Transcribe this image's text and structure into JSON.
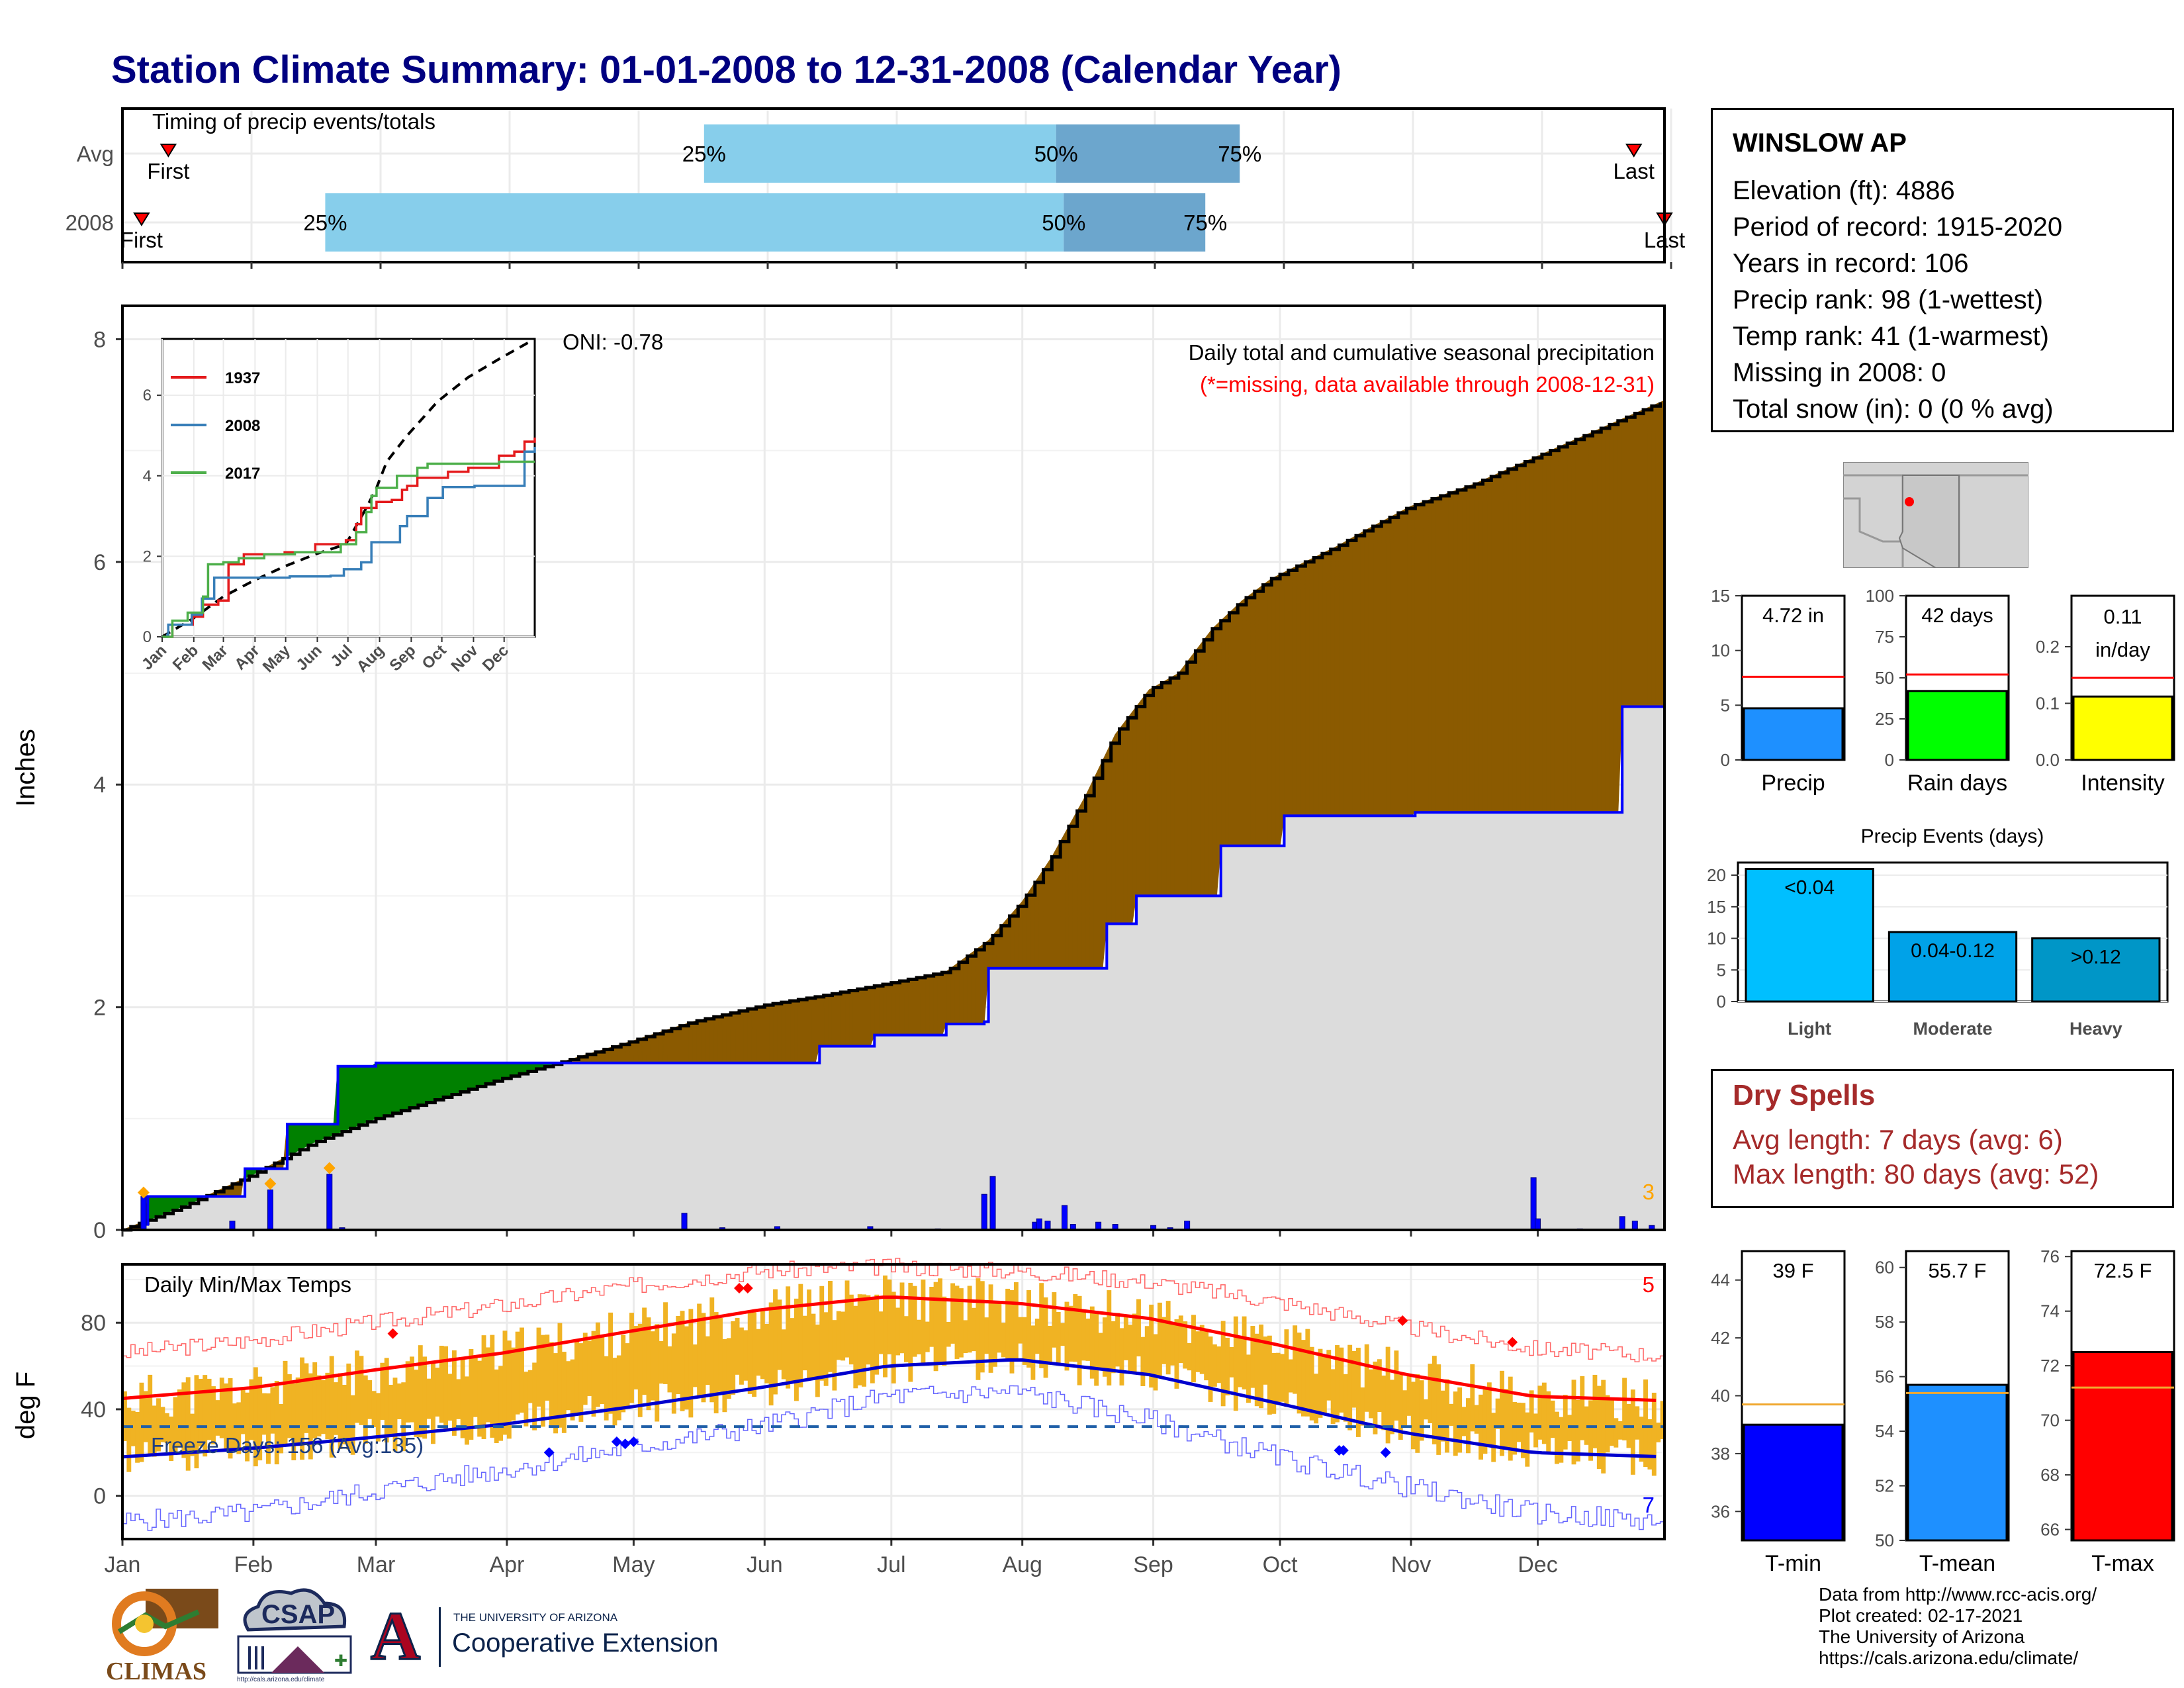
{
  "title": "Station Climate Summary: 01-01-2008 to 12-31-2008 (Calendar Year)",
  "station": {
    "name": "WINSLOW AP",
    "lines": [
      "Elevation (ft): 4886",
      "Period of record: 1915-2020",
      "Years in record: 106",
      "Precip rank: 98 (1-wettest)",
      "Temp rank: 41 (1-warmest)",
      "Missing in 2008: 0",
      "Total snow (in): 0 (0 % avg)"
    ]
  },
  "dry_spells": {
    "title": "Dry Spells",
    "avg_line": "Avg length: 7 days (avg: 6)",
    "max_line": "Max length: 80 days (avg: 52)"
  },
  "credits": [
    "Data from http://www.rcc-acis.org/",
    "Plot created: 02-17-2021",
    "The University of Arizona",
    "https://cals.arizona.edu/climate/"
  ],
  "logos": {
    "climas": "CLIMAS",
    "csap": "CSAP",
    "csap_url": "http://cals.arizona.edu/climate",
    "ua_line1": "THE UNIVERSITY OF ARIZONA",
    "ua_line2": "Cooperative Extension",
    "ua_mark": "A"
  },
  "colors": {
    "title": "#000080",
    "light_blue": "#87ceeb",
    "mid_blue": "#6ca6cd",
    "brown": "#8b5a00",
    "green": "#008000",
    "gray_fill": "#dcdcdc",
    "orange": "#ffa500",
    "temp_bar": "#f0b323",
    "tmin": "#0000ff",
    "tmean": "#1e90ff",
    "tmax": "#ff0000",
    "dry_spell": "#a52a2a"
  },
  "chart_data": [
    {
      "id": "timing",
      "type": "bar",
      "title": "Timing of precip events/totals",
      "rows": [
        {
          "label": "Avg",
          "first_day": 12,
          "q25_day": 152,
          "q50_day": 244,
          "q75_day": 292,
          "last_day": 395,
          "first_label": "First",
          "last_label": "Last"
        },
        {
          "label": "2008",
          "first_day": 5,
          "q25_day": 53,
          "q50_day": 246,
          "q75_day": 283,
          "last_day": 403,
          "first_label": "First",
          "last_label": "Last"
        }
      ],
      "quartile_labels": [
        "25%",
        "50%",
        "75%"
      ],
      "xlim": [
        0,
        403
      ]
    },
    {
      "id": "precip",
      "type": "area",
      "title": "Daily total and cumulative seasonal precipitation",
      "subtitle": "(*=missing, data available through 2008-12-31)",
      "ylabel": "Inches",
      "ylim": [
        0,
        8.3
      ],
      "yticks": [
        0,
        2,
        4,
        6,
        8
      ],
      "oni_text": "ONI: -0.78",
      "corner_count": "3",
      "x_months": [
        "Jan",
        "Feb",
        "Mar",
        "Apr",
        "May",
        "Jun",
        "Jul",
        "Aug",
        "Sep",
        "Oct",
        "Nov",
        "Dec"
      ],
      "avg_cumulative": {
        "days": [
          0,
          15,
          31,
          45,
          60,
          75,
          90,
          105,
          121,
          135,
          152,
          165,
          182,
          195,
          205,
          213,
          220,
          228,
          235,
          243,
          250,
          258,
          265,
          272,
          280,
          288,
          295,
          305,
          320,
          335,
          350,
          365
        ],
        "values": [
          0,
          0.22,
          0.5,
          0.78,
          1.0,
          1.18,
          1.36,
          1.52,
          1.7,
          1.87,
          2.02,
          2.1,
          2.22,
          2.32,
          2.6,
          2.95,
          3.35,
          3.9,
          4.45,
          4.85,
          5.0,
          5.4,
          5.65,
          5.85,
          6.0,
          6.15,
          6.3,
          6.5,
          6.7,
          6.95,
          7.2,
          7.45
        ]
      },
      "obs_cumulative": {
        "days": [
          0,
          5,
          6,
          28,
          29,
          38,
          39,
          50,
          51,
          60,
          61,
          125,
          165,
          165,
          178,
          178,
          195,
          195,
          204,
          205,
          233,
          233,
          240,
          260,
          275,
          275,
          306,
          355,
          355,
          365
        ],
        "values": [
          0,
          0.05,
          0.3,
          0.3,
          0.55,
          0.55,
          0.95,
          0.95,
          1.47,
          1.5,
          1.5,
          1.5,
          1.52,
          1.65,
          1.68,
          1.75,
          1.75,
          1.85,
          1.87,
          2.35,
          2.4,
          2.75,
          3.0,
          3.45,
          3.55,
          3.72,
          3.75,
          4.6,
          4.7,
          4.72
        ]
      },
      "daily_bars": [
        {
          "day": 5,
          "value": 0.3
        },
        {
          "day": 26,
          "value": 0.08
        },
        {
          "day": 35,
          "value": 0.36
        },
        {
          "day": 49,
          "value": 0.5
        },
        {
          "day": 52,
          "value": 0.02
        },
        {
          "day": 133,
          "value": 0.15
        },
        {
          "day": 142,
          "value": 0.02
        },
        {
          "day": 155,
          "value": 0.03
        },
        {
          "day": 177,
          "value": 0.03
        },
        {
          "day": 193,
          "value": 0.01
        },
        {
          "day": 204,
          "value": 0.32
        },
        {
          "day": 206,
          "value": 0.48
        },
        {
          "day": 216,
          "value": 0.07
        },
        {
          "day": 217,
          "value": 0.1
        },
        {
          "day": 219,
          "value": 0.08
        },
        {
          "day": 223,
          "value": 0.22
        },
        {
          "day": 225,
          "value": 0.05
        },
        {
          "day": 231,
          "value": 0.07
        },
        {
          "day": 235,
          "value": 0.05
        },
        {
          "day": 244,
          "value": 0.04
        },
        {
          "day": 248,
          "value": 0.02
        },
        {
          "day": 252,
          "value": 0.08
        },
        {
          "day": 334,
          "value": 0.47
        },
        {
          "day": 335,
          "value": 0.1
        },
        {
          "day": 345,
          "value": 0.01
        },
        {
          "day": 355,
          "value": 0.12
        },
        {
          "day": 358,
          "value": 0.08
        },
        {
          "day": 362,
          "value": 0.04
        }
      ],
      "markers": [
        {
          "day": 5,
          "value": 0.3
        },
        {
          "day": 35,
          "value": 0.38
        },
        {
          "day": 49,
          "value": 0.52
        }
      ],
      "inset": {
        "type": "line",
        "xlabels": [
          "Jan",
          "Feb",
          "Mar",
          "Apr",
          "May",
          "Jun",
          "Jul",
          "Aug",
          "Sep",
          "Oct",
          "Nov",
          "Dec"
        ],
        "ylim": [
          0,
          7.4
        ],
        "yticks": [
          0,
          2,
          4,
          6
        ],
        "avg_line": {
          "days": [
            0,
            30,
            60,
            90,
            120,
            150,
            180,
            200,
            210,
            220,
            240,
            270,
            300,
            330,
            365
          ],
          "values": [
            0,
            0.45,
            1.0,
            1.4,
            1.75,
            2.05,
            2.3,
            3.2,
            3.7,
            4.35,
            5.0,
            5.85,
            6.45,
            6.9,
            7.4
          ]
        },
        "series": [
          {
            "name": "1937",
            "color": "#e41a1c",
            "days": [
              0,
              10,
              30,
              40,
              55,
              65,
              80,
              120,
              150,
              160,
              180,
              190,
              195,
              210,
              225,
              235,
              240,
              250,
              280,
              300,
              330,
              345,
              355,
              365
            ],
            "values": [
              0,
              0.3,
              0.5,
              0.8,
              0.9,
              1.8,
              2.05,
              2.1,
              2.3,
              2.3,
              2.4,
              2.8,
              3.2,
              3.35,
              3.4,
              3.65,
              3.75,
              3.95,
              4.1,
              4.2,
              4.5,
              4.6,
              4.85,
              4.95
            ]
          },
          {
            "name": "2008",
            "color": "#377eb8",
            "days": [
              0,
              5,
              6,
              28,
              29,
              38,
              39,
              50,
              51,
              125,
              165,
              178,
              195,
              205,
              233,
              240,
              260,
              275,
              306,
              355,
              365
            ],
            "values": [
              0,
              0.05,
              0.3,
              0.3,
              0.55,
              0.55,
              0.95,
              0.95,
              1.47,
              1.5,
              1.52,
              1.68,
              1.85,
              2.35,
              2.75,
              3.0,
              3.45,
              3.72,
              3.75,
              4.6,
              4.72
            ]
          },
          {
            "name": "2017",
            "color": "#4daf4a",
            "days": [
              0,
              10,
              25,
              40,
              45,
              60,
              75,
              100,
              130,
              160,
              175,
              190,
              200,
              205,
              210,
              230,
              250,
              260,
              300,
              330,
              365
            ],
            "values": [
              0,
              0.4,
              0.6,
              1.0,
              1.8,
              1.85,
              1.95,
              2.05,
              2.1,
              2.1,
              2.3,
              2.6,
              3.1,
              3.5,
              3.7,
              4.0,
              4.2,
              4.3,
              4.3,
              4.35,
              4.35
            ]
          }
        ]
      }
    },
    {
      "id": "temps",
      "type": "line",
      "title": "Daily Min/Max Temps",
      "ylabel": "deg F",
      "ylim": [
        -20,
        107
      ],
      "yticks": [
        0,
        40,
        80
      ],
      "freeze_text": "Freeze Days: 156 (Avg:135)",
      "freeze_line": 32,
      "record_high_count": "5",
      "record_low_count": "7",
      "x_months": [
        "Jan",
        "Feb",
        "Mar",
        "Apr",
        "May",
        "Jun",
        "Jul",
        "Aug",
        "Sep",
        "Oct",
        "Nov",
        "Dec"
      ],
      "normal_max": {
        "days": [
          0,
          31,
          59,
          90,
          120,
          151,
          181,
          212,
          243,
          273,
          304,
          334,
          365
        ],
        "values": [
          45,
          50,
          58,
          66,
          76,
          86,
          92,
          89,
          82,
          70,
          56,
          46,
          44
        ]
      },
      "normal_min": {
        "days": [
          0,
          31,
          59,
          90,
          120,
          151,
          181,
          212,
          243,
          273,
          304,
          334,
          365
        ],
        "values": [
          18,
          22,
          27,
          33,
          41,
          50,
          60,
          63,
          56,
          43,
          29,
          20,
          18
        ]
      },
      "record_max": {
        "days": [
          0,
          31,
          59,
          90,
          120,
          151,
          181,
          212,
          243,
          273,
          304,
          334,
          365
        ],
        "values": [
          66,
          72,
          80,
          88,
          97,
          104,
          106,
          104,
          99,
          90,
          78,
          68,
          65
        ]
      },
      "record_min": {
        "days": [
          0,
          31,
          59,
          90,
          120,
          151,
          181,
          212,
          243,
          273,
          304,
          334,
          365
        ],
        "values": [
          -12,
          -8,
          2,
          12,
          22,
          32,
          46,
          48,
          35,
          18,
          4,
          -8,
          -12
        ]
      },
      "high_markers": [
        {
          "day": 64,
          "value": 75
        },
        {
          "day": 146,
          "value": 96
        },
        {
          "day": 148,
          "value": 96
        },
        {
          "day": 303,
          "value": 81
        },
        {
          "day": 329,
          "value": 71
        }
      ],
      "low_markers": [
        {
          "day": 101,
          "value": 20
        },
        {
          "day": 117,
          "value": 25
        },
        {
          "day": 119,
          "value": 24
        },
        {
          "day": 121,
          "value": 25
        },
        {
          "day": 288,
          "value": 21
        },
        {
          "day": 289,
          "value": 21
        },
        {
          "day": 299,
          "value": 20
        }
      ]
    },
    {
      "id": "precip_summary",
      "type": "bar",
      "panels": [
        {
          "name": "Precip",
          "value": 4.72,
          "value_label": "4.72 in",
          "avg": 7.6,
          "ylim": [
            0,
            15
          ],
          "yticks": [
            0,
            5,
            10,
            15
          ],
          "color": "#1e90ff"
        },
        {
          "name": "Rain days",
          "value": 42,
          "value_label": "42 days",
          "avg": 52,
          "ylim": [
            0,
            100
          ],
          "yticks": [
            0,
            25,
            50,
            75,
            100
          ],
          "color": "#00ff00"
        },
        {
          "name": "Intensity",
          "value": 0.112,
          "value_label": "0.11 in/day",
          "avg": 0.145,
          "ylim": [
            0,
            0.29
          ],
          "yticks": [
            0.0,
            0.1,
            0.2
          ],
          "ytick_labels": [
            "0.0",
            "0.1",
            "0.2"
          ],
          "color": "#ffff00"
        }
      ]
    },
    {
      "id": "precip_events",
      "type": "bar",
      "title": "Precip Events (days)",
      "categories": [
        "Light",
        "Moderate",
        "Heavy"
      ],
      "values": [
        21,
        11,
        10
      ],
      "bar_labels": [
        "<0.04",
        "0.04-0.12",
        ">0.12"
      ],
      "colors": [
        "#00bfff",
        "#00a2e8",
        "#0096c7"
      ],
      "ylim": [
        0,
        22
      ],
      "yticks": [
        0,
        5,
        10,
        15,
        20
      ]
    },
    {
      "id": "temp_summary",
      "type": "bar",
      "panels": [
        {
          "name": "T-min",
          "value": 39,
          "value_label": "39 F",
          "avg": 39.7,
          "ylim": [
            35,
            45
          ],
          "yticks": [
            36,
            38,
            40,
            42,
            44
          ],
          "color": "#0000ff"
        },
        {
          "name": "T-mean",
          "value": 55.7,
          "value_label": "55.7 F",
          "avg": 55.4,
          "ylim": [
            50,
            60.6
          ],
          "yticks": [
            50,
            52,
            54,
            56,
            58,
            60
          ],
          "color": "#1e90ff"
        },
        {
          "name": "T-max",
          "value": 72.5,
          "value_label": "72.5 F",
          "avg": 71.2,
          "ylim": [
            65.6,
            76.2
          ],
          "yticks": [
            66,
            68,
            70,
            72,
            74,
            76
          ],
          "color": "#ff0000"
        }
      ]
    }
  ]
}
